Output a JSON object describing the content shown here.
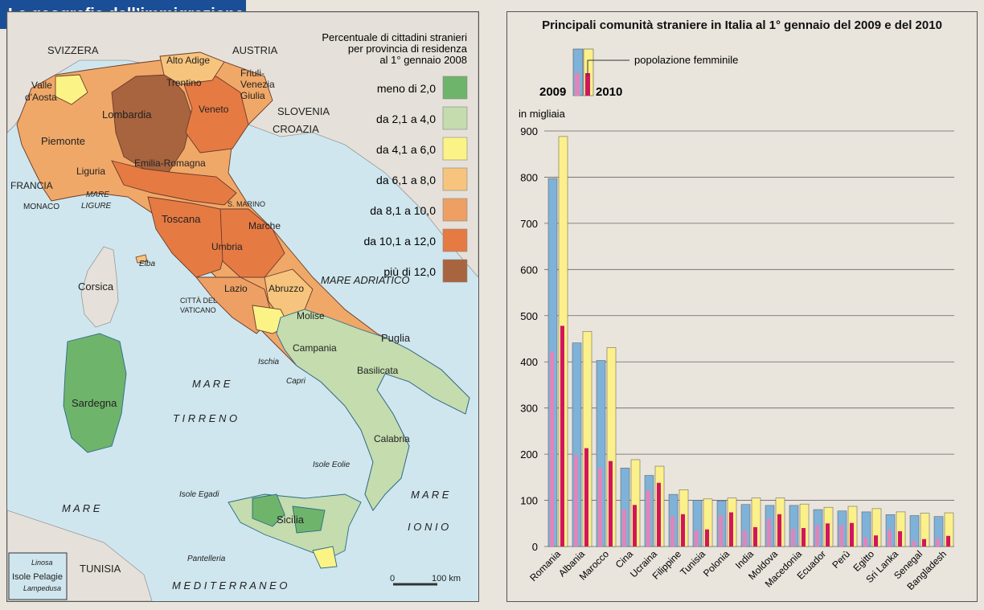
{
  "map": {
    "badge_title": "La geografia dell’immigrazione",
    "legend_title_lines": [
      "Percentuale di cittadini stranieri",
      "per provincia di residenza",
      "al 1° gennaio 2008"
    ],
    "legend": [
      {
        "label": "meno di 2,0",
        "color": "#6fb46b"
      },
      {
        "label": "da 2,1 a 4,0",
        "color": "#c4dcae"
      },
      {
        "label": "da 4,1 a 6,0",
        "color": "#fbf386"
      },
      {
        "label": "da 6,1 a 8,0",
        "color": "#f6c47c"
      },
      {
        "label": "da 8,1 a 10,0",
        "color": "#eea064"
      },
      {
        "label": "da 10,1 a 12,0",
        "color": "#e67a43"
      },
      {
        "label": "più di 12,0",
        "color": "#a8643f"
      }
    ],
    "labels": {
      "svizzera": "SVIZZERA",
      "austria": "AUSTRIA",
      "slovenia": "SLOVENIA",
      "croazia": "CROAZIA",
      "francia": "FRANCIA",
      "monaco": "MONACO",
      "tunisia": "TUNISIA",
      "valle_aosta_1": "Valle",
      "valle_aosta_2": "d'Aosta",
      "alto_adige": "Alto Adige",
      "trentino": "Trentino",
      "friuli_1": "Friuli-",
      "friuli_2": "Venezia",
      "friuli_3": "Giulia",
      "lombardia": "Lombardia",
      "veneto": "Veneto",
      "piemonte": "Piemonte",
      "liguria": "Liguria",
      "emilia": "Emilia-Romagna",
      "toscana": "Toscana",
      "marche": "Marche",
      "umbria": "Umbria",
      "lazio": "Lazio",
      "abruzzo": "Abruzzo",
      "molise": "Molise",
      "campania": "Campania",
      "puglia": "Puglia",
      "basilicata": "Basilicata",
      "calabria": "Calabria",
      "sicilia": "Sicilia",
      "sardegna": "Sardegna",
      "corsica": "Corsica",
      "elba": "Elba",
      "s_marino": "S. MARINO",
      "vaticano_1": "CITTÀ DEL",
      "vaticano_2": "VATICANO",
      "ischia": "Ischia",
      "capri": "Capri",
      "isole_eolie": "Isole Eolie",
      "isole_egadi": "Isole Egadi",
      "pantelleria": "Pantelleria",
      "mare_ligure_1": "MARE",
      "mare_ligure_2": "LIGURE",
      "mare_adriatico": "MARE ADRIATICO",
      "mare_tirreno_1": "M A R E",
      "mare_tirreno_2": "T I R R E N O",
      "mare_ionio_1": "M A R E",
      "mare_ionio_2": "I O N I O",
      "mare_med_1": "M A R E",
      "mare_med_2": "M E D I T E R R A N E O",
      "linosa": "Linosa",
      "isole_pelagie": "Isole Pelagie",
      "lampedusa": "Lampedusa",
      "scale_0": "0",
      "scale_100": "100 km"
    }
  },
  "chart_data": {
    "type": "bar",
    "title": "Principali comunità straniere in Italia al 1° gennaio del 2009 e del 2010",
    "ylabel": "in migliaia",
    "ylim": [
      0,
      900
    ],
    "yticks": [
      "0",
      "100",
      "200",
      "300",
      "400",
      "500",
      "600",
      "700",
      "800",
      "900"
    ],
    "legend": {
      "year_2009": "2009",
      "year_2010": "2010",
      "female_label": "popolazione femminile"
    },
    "colors": {
      "total_2009": "#7fb2d8",
      "total_2010": "#fbf08a",
      "female_2009": "#e184b9",
      "female_2010": "#d1155f"
    },
    "categories": [
      "Romania",
      "Albania",
      "Marocco",
      "Cina",
      "Ucraina",
      "Filippine",
      "Tunisia",
      "Polonia",
      "India",
      "Moldova",
      "Macedonia",
      "Ecuador",
      "Perù",
      "Egitto",
      "Sri Lanka",
      "Senegal",
      "Bangladesh"
    ],
    "series": [
      {
        "name": "2009",
        "values": [
          797,
          441,
          403,
          170,
          154,
          113,
          100,
          99,
          91,
          89,
          89,
          80,
          77,
          75,
          69,
          67,
          65
        ]
      },
      {
        "name": "2010",
        "values": [
          888,
          466,
          431,
          188,
          174,
          123,
          103,
          105,
          105,
          105,
          92,
          85,
          87,
          82,
          75,
          72,
          73
        ]
      },
      {
        "name": "popolazione femminile 2009",
        "values": [
          422,
          198,
          170,
          80,
          122,
          65,
          35,
          68,
          35,
          60,
          38,
          46,
          46,
          20,
          36,
          12,
          18
        ]
      },
      {
        "name": "popolazione femminile 2010",
        "values": [
          478,
          213,
          185,
          90,
          138,
          70,
          37,
          74,
          42,
          70,
          40,
          50,
          51,
          24,
          33,
          16,
          23
        ]
      }
    ]
  }
}
